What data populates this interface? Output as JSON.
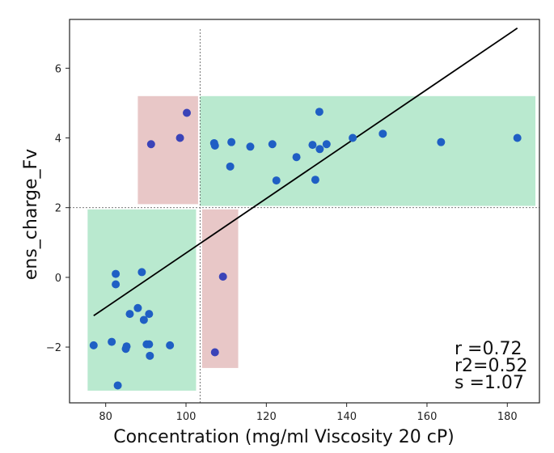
{
  "chart_data": {
    "type": "scatter",
    "title": "",
    "xlabel": "Concentration (mg/ml Viscosity 20 cP)",
    "ylabel": "ens_charge_Fv",
    "xlim": [
      71,
      188
    ],
    "ylim": [
      -3.6,
      7.4
    ],
    "xticks": [
      80,
      100,
      120,
      140,
      160,
      180
    ],
    "yticks": [
      -2,
      0,
      2,
      4,
      6
    ],
    "grid": false,
    "threshold_x": 103.5,
    "threshold_y": 2.0,
    "regions": [
      {
        "name": "upper-right-correct",
        "color": "#b9e9cf",
        "x": [
          103.5,
          187
        ],
        "y": [
          2.05,
          5.2
        ]
      },
      {
        "name": "lower-left-correct",
        "color": "#b9e9cf",
        "x": [
          75.5,
          102.5
        ],
        "y": [
          -3.25,
          1.95
        ]
      },
      {
        "name": "upper-left-misclassified",
        "color": "#e8c7c7",
        "x": [
          88,
          103
        ],
        "y": [
          2.1,
          5.2
        ]
      },
      {
        "name": "lower-right-misclassified",
        "color": "#e8c7c7",
        "x": [
          104,
          113
        ],
        "y": [
          -2.6,
          1.95
        ]
      }
    ],
    "series": [
      {
        "name": "correct",
        "color": "#1f5fc4",
        "points": [
          [
            77,
            -1.95
          ],
          [
            81.5,
            -1.85
          ],
          [
            82.5,
            0.1
          ],
          [
            82.5,
            -0.2
          ],
          [
            83,
            -3.1
          ],
          [
            85,
            -2.05
          ],
          [
            85.2,
            -1.98
          ],
          [
            86,
            -1.05
          ],
          [
            88,
            -0.88
          ],
          [
            89,
            0.15
          ],
          [
            89.5,
            -1.22
          ],
          [
            90.2,
            -1.92
          ],
          [
            90.8,
            -1.05
          ],
          [
            90.8,
            -1.92
          ],
          [
            91,
            -2.25
          ],
          [
            96,
            -1.95
          ],
          [
            107,
            3.85
          ],
          [
            107.2,
            3.78
          ],
          [
            111,
            3.18
          ],
          [
            111.3,
            3.88
          ],
          [
            116,
            3.75
          ],
          [
            121.5,
            3.82
          ],
          [
            122.5,
            2.78
          ],
          [
            127.5,
            3.45
          ],
          [
            131.5,
            3.8
          ],
          [
            132.2,
            2.8
          ],
          [
            133.2,
            4.75
          ],
          [
            133.3,
            3.68
          ],
          [
            135,
            3.82
          ],
          [
            141.5,
            4.0
          ],
          [
            149,
            4.12
          ],
          [
            163.5,
            3.88
          ],
          [
            182.5,
            4.0
          ]
        ]
      },
      {
        "name": "misclassified",
        "color": "#3a43b8",
        "points": [
          [
            91.3,
            3.82
          ],
          [
            98.5,
            4.0
          ],
          [
            100.2,
            4.72
          ],
          [
            107.2,
            -2.15
          ],
          [
            109.2,
            0.02
          ]
        ]
      }
    ],
    "fit_line": {
      "x": [
        77,
        182.5
      ],
      "y": [
        -1.1,
        7.15
      ],
      "color": "#000000"
    },
    "stats": {
      "r": "r =0.72",
      "r2": "r2=0.52",
      "s": "s =1.07"
    }
  }
}
